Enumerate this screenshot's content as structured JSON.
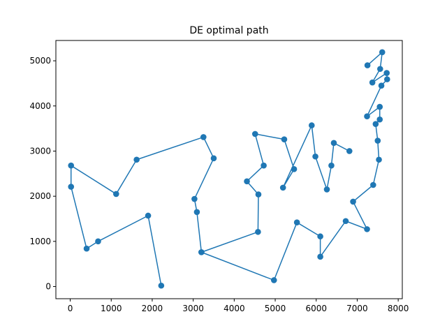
{
  "chart_data": {
    "type": "line",
    "title": "DE optimal path",
    "xlabel": "",
    "ylabel": "",
    "xlim": [
      -350,
      8100
    ],
    "ylim": [
      -270,
      5450
    ],
    "xticks": [
      0,
      1000,
      2000,
      3000,
      4000,
      5000,
      6000,
      7000,
      8000
    ],
    "yticks": [
      0,
      1000,
      2000,
      3000,
      4000,
      5000
    ],
    "grid": false,
    "legend": "none",
    "series": [
      {
        "color": "#1f77b4",
        "marker": "circle",
        "points": [
          [
            2220,
            20
          ],
          [
            1900,
            1570
          ],
          [
            680,
            1000
          ],
          [
            400,
            840
          ],
          [
            20,
            2210
          ],
          [
            20,
            2680
          ],
          [
            1120,
            2050
          ],
          [
            1620,
            2810
          ],
          [
            3250,
            3310
          ],
          [
            3500,
            2840
          ],
          [
            3030,
            1940
          ],
          [
            3090,
            1650
          ],
          [
            3200,
            760
          ],
          [
            4970,
            140
          ],
          [
            5530,
            1420
          ],
          [
            6100,
            1110
          ],
          [
            6100,
            660
          ],
          [
            6720,
            1450
          ],
          [
            7240,
            1270
          ],
          [
            6900,
            1880
          ],
          [
            7390,
            2250
          ],
          [
            7530,
            2810
          ],
          [
            7500,
            3230
          ],
          [
            7450,
            3600
          ],
          [
            7550,
            3700
          ],
          [
            7550,
            3980
          ],
          [
            7240,
            3770
          ],
          [
            7590,
            4450
          ],
          [
            7730,
            4590
          ],
          [
            7720,
            4730
          ],
          [
            7370,
            4520
          ],
          [
            7560,
            4820
          ],
          [
            7610,
            5190
          ],
          [
            7250,
            4900
          ]
        ]
      },
      {
        "color": "#1f77b4",
        "marker": "circle",
        "points": [
          [
            6810,
            3000
          ],
          [
            6430,
            3180
          ],
          [
            6370,
            2680
          ],
          [
            6260,
            2150
          ],
          [
            5980,
            2880
          ],
          [
            5890,
            3570
          ],
          [
            5190,
            2190
          ],
          [
            5460,
            2600
          ],
          [
            5220,
            3260
          ],
          [
            4510,
            3380
          ],
          [
            4720,
            2680
          ],
          [
            4310,
            2330
          ],
          [
            4590,
            2040
          ],
          [
            4580,
            1210
          ],
          [
            3200,
            760
          ]
        ]
      }
    ]
  }
}
